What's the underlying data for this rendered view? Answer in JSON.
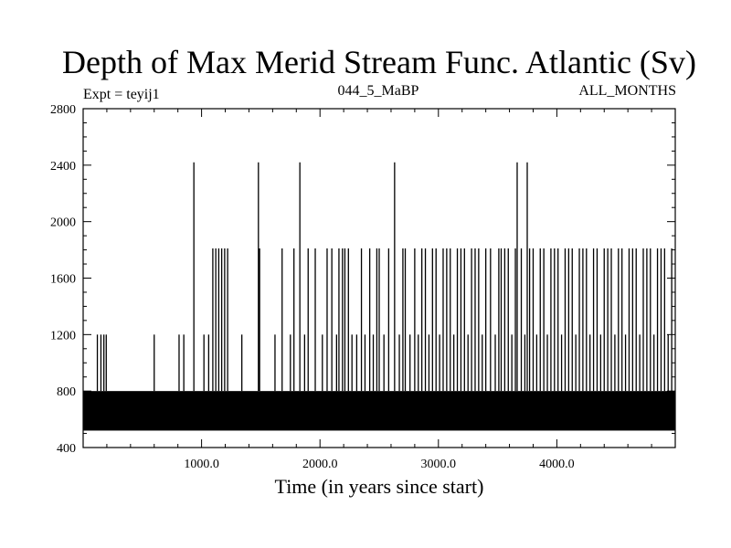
{
  "chart_data": {
    "type": "line",
    "title": "Depth of Max Merid Stream Func. Atlantic (Sv)",
    "subtitle_left": "Expt = teyij1",
    "subtitle_center": "044_5_MaBP",
    "subtitle_right": "ALL_MONTHS",
    "xlabel": "Time (in years since start)",
    "ylabel": "",
    "xlim": [
      0,
      5000
    ],
    "ylim": [
      400,
      2800
    ],
    "xticks": [
      1000,
      2000,
      3000,
      4000
    ],
    "xtick_labels": [
      "1000.0",
      "2000.0",
      "3000.0",
      "4000.0"
    ],
    "yticks": [
      400,
      800,
      1200,
      1600,
      2000,
      2400,
      2800
    ],
    "ytick_labels": [
      "400",
      "800",
      "1200",
      "1600",
      "2000",
      "2400",
      "2800"
    ],
    "grid": false,
    "dense_band": [
      520,
      800
    ],
    "spikes": [
      {
        "x": 120,
        "y": 1200
      },
      {
        "x": 150,
        "y": 1200
      },
      {
        "x": 175,
        "y": 1200
      },
      {
        "x": 195,
        "y": 1200
      },
      {
        "x": 600,
        "y": 1200
      },
      {
        "x": 810,
        "y": 1200
      },
      {
        "x": 850,
        "y": 1200
      },
      {
        "x": 935,
        "y": 2420
      },
      {
        "x": 1020,
        "y": 1200
      },
      {
        "x": 1060,
        "y": 1200
      },
      {
        "x": 1095,
        "y": 1810
      },
      {
        "x": 1120,
        "y": 1810
      },
      {
        "x": 1145,
        "y": 1810
      },
      {
        "x": 1170,
        "y": 1810
      },
      {
        "x": 1195,
        "y": 1810
      },
      {
        "x": 1220,
        "y": 1810
      },
      {
        "x": 1340,
        "y": 1200
      },
      {
        "x": 1480,
        "y": 2420
      },
      {
        "x": 1490,
        "y": 1810
      },
      {
        "x": 1620,
        "y": 1200
      },
      {
        "x": 1680,
        "y": 1810
      },
      {
        "x": 1750,
        "y": 1200
      },
      {
        "x": 1780,
        "y": 1810
      },
      {
        "x": 1830,
        "y": 2420
      },
      {
        "x": 1870,
        "y": 1200
      },
      {
        "x": 1900,
        "y": 1810
      },
      {
        "x": 1960,
        "y": 1810
      },
      {
        "x": 2020,
        "y": 1200
      },
      {
        "x": 2060,
        "y": 1810
      },
      {
        "x": 2100,
        "y": 1810
      },
      {
        "x": 2140,
        "y": 1200
      },
      {
        "x": 2160,
        "y": 1810
      },
      {
        "x": 2190,
        "y": 1810
      },
      {
        "x": 2210,
        "y": 1810
      },
      {
        "x": 2240,
        "y": 1810
      },
      {
        "x": 2270,
        "y": 1200
      },
      {
        "x": 2310,
        "y": 1200
      },
      {
        "x": 2350,
        "y": 1810
      },
      {
        "x": 2380,
        "y": 1200
      },
      {
        "x": 2420,
        "y": 1810
      },
      {
        "x": 2450,
        "y": 1200
      },
      {
        "x": 2480,
        "y": 1810
      },
      {
        "x": 2500,
        "y": 1810
      },
      {
        "x": 2540,
        "y": 1200
      },
      {
        "x": 2580,
        "y": 1810
      },
      {
        "x": 2630,
        "y": 2420
      },
      {
        "x": 2670,
        "y": 1200
      },
      {
        "x": 2700,
        "y": 1810
      },
      {
        "x": 2720,
        "y": 1810
      },
      {
        "x": 2760,
        "y": 1200
      },
      {
        "x": 2800,
        "y": 1810
      },
      {
        "x": 2830,
        "y": 1200
      },
      {
        "x": 2860,
        "y": 1810
      },
      {
        "x": 2890,
        "y": 1810
      },
      {
        "x": 2920,
        "y": 1200
      },
      {
        "x": 2950,
        "y": 1810
      },
      {
        "x": 2980,
        "y": 1810
      },
      {
        "x": 3010,
        "y": 1200
      },
      {
        "x": 3040,
        "y": 1810
      },
      {
        "x": 3070,
        "y": 1810
      },
      {
        "x": 3100,
        "y": 1810
      },
      {
        "x": 3130,
        "y": 1200
      },
      {
        "x": 3160,
        "y": 1810
      },
      {
        "x": 3190,
        "y": 1810
      },
      {
        "x": 3220,
        "y": 1810
      },
      {
        "x": 3250,
        "y": 1200
      },
      {
        "x": 3280,
        "y": 1810
      },
      {
        "x": 3310,
        "y": 1810
      },
      {
        "x": 3340,
        "y": 1810
      },
      {
        "x": 3370,
        "y": 1200
      },
      {
        "x": 3400,
        "y": 1810
      },
      {
        "x": 3440,
        "y": 1810
      },
      {
        "x": 3480,
        "y": 1200
      },
      {
        "x": 3510,
        "y": 1810
      },
      {
        "x": 3530,
        "y": 1810
      },
      {
        "x": 3560,
        "y": 1810
      },
      {
        "x": 3590,
        "y": 1810
      },
      {
        "x": 3620,
        "y": 1200
      },
      {
        "x": 3650,
        "y": 1810
      },
      {
        "x": 3665,
        "y": 2420
      },
      {
        "x": 3700,
        "y": 1810
      },
      {
        "x": 3730,
        "y": 1200
      },
      {
        "x": 3750,
        "y": 2420
      },
      {
        "x": 3770,
        "y": 1810
      },
      {
        "x": 3800,
        "y": 1810
      },
      {
        "x": 3830,
        "y": 1200
      },
      {
        "x": 3860,
        "y": 1810
      },
      {
        "x": 3890,
        "y": 1810
      },
      {
        "x": 3920,
        "y": 1200
      },
      {
        "x": 3950,
        "y": 1810
      },
      {
        "x": 3980,
        "y": 1810
      },
      {
        "x": 4010,
        "y": 1810
      },
      {
        "x": 4040,
        "y": 1200
      },
      {
        "x": 4070,
        "y": 1810
      },
      {
        "x": 4100,
        "y": 1810
      },
      {
        "x": 4130,
        "y": 1810
      },
      {
        "x": 4160,
        "y": 1200
      },
      {
        "x": 4190,
        "y": 1810
      },
      {
        "x": 4220,
        "y": 1810
      },
      {
        "x": 4250,
        "y": 1810
      },
      {
        "x": 4280,
        "y": 1200
      },
      {
        "x": 4310,
        "y": 1810
      },
      {
        "x": 4340,
        "y": 1810
      },
      {
        "x": 4370,
        "y": 1200
      },
      {
        "x": 4400,
        "y": 1810
      },
      {
        "x": 4430,
        "y": 1810
      },
      {
        "x": 4460,
        "y": 1810
      },
      {
        "x": 4490,
        "y": 1200
      },
      {
        "x": 4520,
        "y": 1810
      },
      {
        "x": 4550,
        "y": 1810
      },
      {
        "x": 4580,
        "y": 1200
      },
      {
        "x": 4610,
        "y": 1810
      },
      {
        "x": 4640,
        "y": 1810
      },
      {
        "x": 4670,
        "y": 1810
      },
      {
        "x": 4700,
        "y": 1200
      },
      {
        "x": 4730,
        "y": 1810
      },
      {
        "x": 4760,
        "y": 1810
      },
      {
        "x": 4790,
        "y": 1810
      },
      {
        "x": 4820,
        "y": 1200
      },
      {
        "x": 4850,
        "y": 1810
      },
      {
        "x": 4880,
        "y": 1810
      },
      {
        "x": 4910,
        "y": 1810
      },
      {
        "x": 4940,
        "y": 1200
      },
      {
        "x": 4970,
        "y": 1810
      }
    ]
  }
}
